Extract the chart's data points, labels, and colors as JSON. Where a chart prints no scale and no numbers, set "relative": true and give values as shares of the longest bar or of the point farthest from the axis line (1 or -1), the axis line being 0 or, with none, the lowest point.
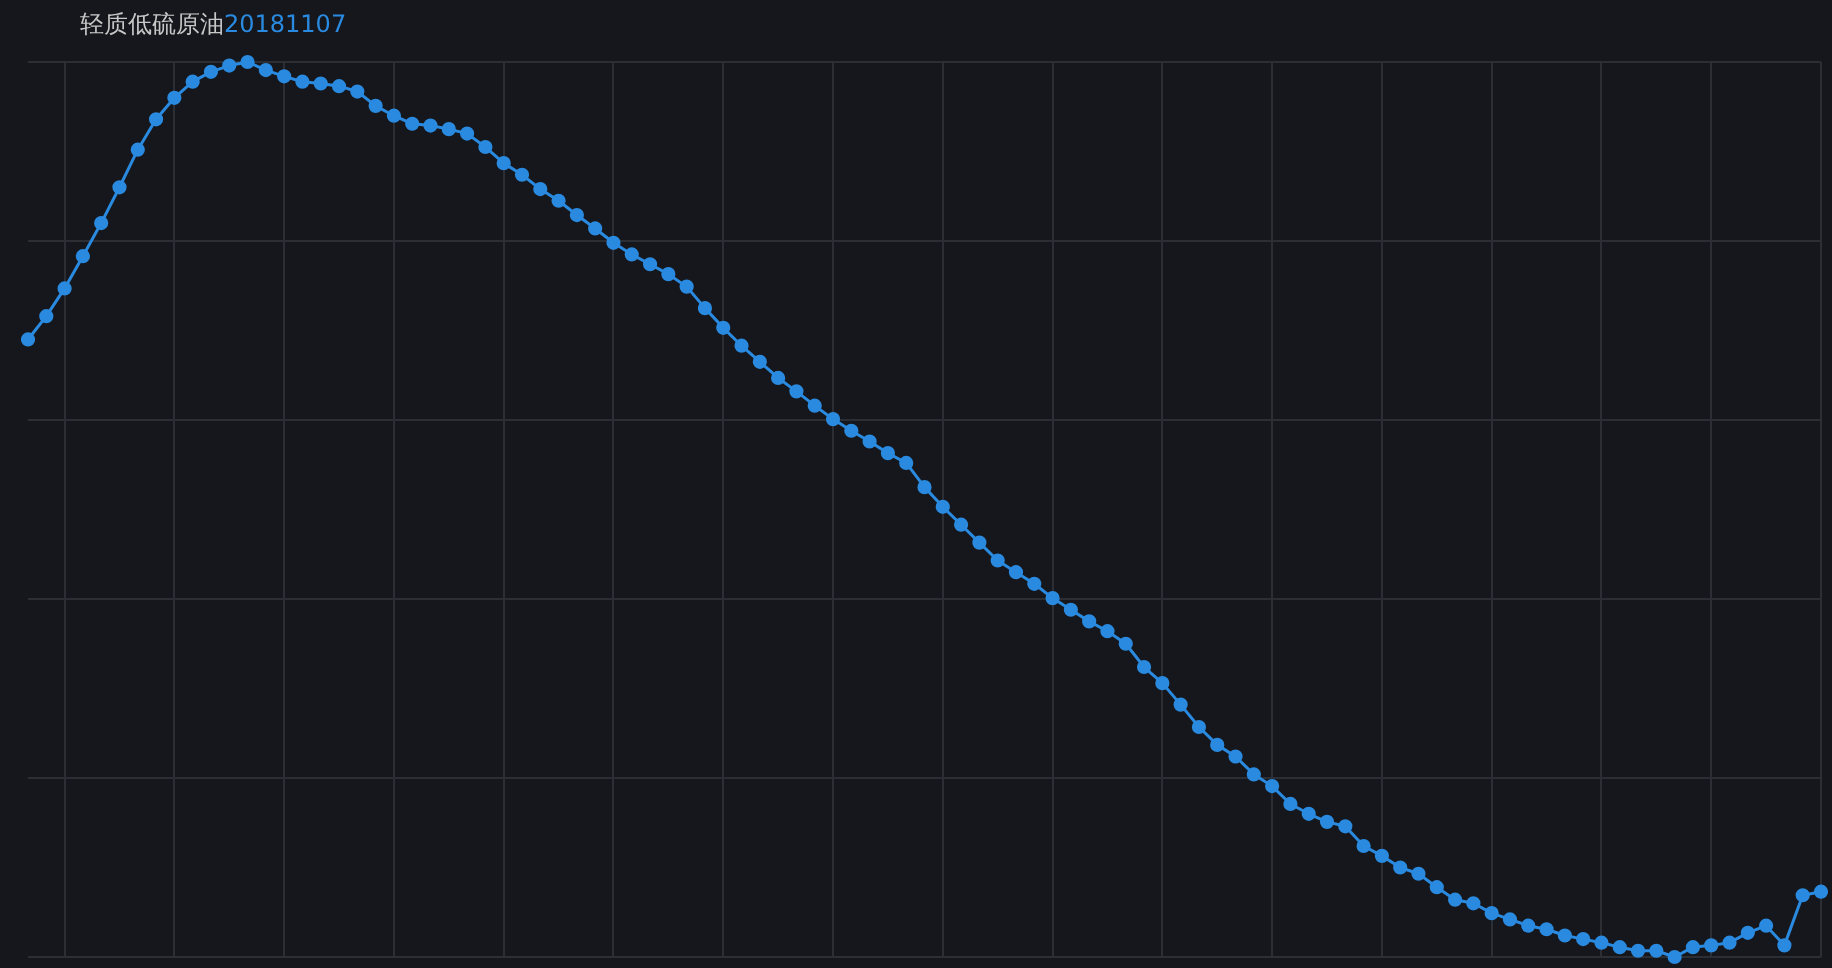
{
  "chart_data": {
    "type": "line",
    "title": "轻质低硫原油",
    "subtitle": "20181107",
    "relative": true,
    "grid": true,
    "marker": "circle",
    "legend": false,
    "categories": [
      null,
      null,
      null,
      null,
      null,
      null,
      null,
      null,
      null,
      null,
      null,
      null,
      null,
      null,
      null,
      null,
      null,
      null,
      null,
      null,
      null,
      null,
      null,
      null,
      null,
      null,
      null,
      null,
      null,
      null,
      null,
      null,
      null,
      null,
      null,
      null,
      null,
      null,
      null,
      null,
      null,
      null,
      null,
      null,
      null,
      null,
      null,
      null,
      null,
      null,
      null,
      null,
      null,
      null,
      null,
      null,
      null,
      null,
      null,
      null,
      null,
      null,
      null,
      null,
      null,
      null,
      null,
      null,
      null,
      null,
      null,
      null,
      null,
      null,
      null,
      null,
      null,
      null,
      null,
      null,
      null,
      null,
      null,
      null,
      null,
      null,
      null,
      null,
      null,
      null,
      null,
      null,
      null,
      null,
      null,
      null,
      null,
      null,
      null
    ],
    "series": [
      {
        "color": "#2a8ae0",
        "values": [
          0.69,
          0.716,
          0.747,
          0.783,
          0.82,
          0.86,
          0.902,
          0.936,
          0.96,
          0.978,
          0.989,
          0.996,
          1,
          0.991,
          0.984,
          0.978,
          0.976,
          0.973,
          0.967,
          0.951,
          0.94,
          0.931,
          0.929,
          0.925,
          0.92,
          0.905,
          0.887,
          0.874,
          0.858,
          0.845,
          0.829,
          0.814,
          0.798,
          0.785,
          0.774,
          0.763,
          0.749,
          0.725,
          0.703,
          0.683,
          0.665,
          0.647,
          0.632,
          0.616,
          0.601,
          0.588,
          0.576,
          0.563,
          0.552,
          0.525,
          0.503,
          0.483,
          0.463,
          0.443,
          0.43,
          0.417,
          0.401,
          0.388,
          0.375,
          0.364,
          0.35,
          0.324,
          0.306,
          0.282,
          0.257,
          0.237,
          0.224,
          0.204,
          0.191,
          0.171,
          0.16,
          0.151,
          0.146,
          0.124,
          0.113,
          0.1,
          0.093,
          0.078,
          0.064,
          0.06,
          0.049,
          0.042,
          0.035,
          0.031,
          0.024,
          0.02,
          0.016,
          0.011,
          0.007,
          0.007,
          0,
          0.011,
          0.013,
          0.016,
          0.027,
          0.035,
          0.013,
          0.069,
          0.073
        ]
      }
    ]
  }
}
